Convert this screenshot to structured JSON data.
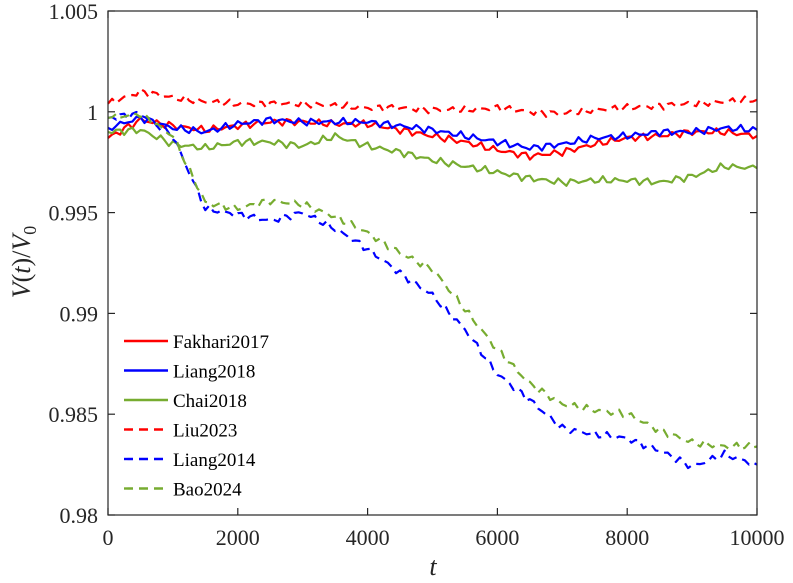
{
  "chart_data": {
    "type": "line",
    "xlabel": "t",
    "ylabel_parts": [
      "V",
      "(",
      "t",
      ")/",
      "V",
      "0"
    ],
    "xlim": [
      0,
      10000
    ],
    "ylim": [
      0.98,
      1.005
    ],
    "x_ticks": [
      "0",
      "2000",
      "4000",
      "6000",
      "8000",
      "10000"
    ],
    "y_ticks": [
      "0.98",
      "0.985",
      "0.99",
      "0.995",
      "1",
      "1.005"
    ],
    "grid": false,
    "legend_position": "bottom-left",
    "x": [
      0,
      500,
      1000,
      1500,
      2000,
      2500,
      3000,
      3500,
      4000,
      4500,
      5000,
      5500,
      6000,
      6500,
      7000,
      7500,
      8000,
      8500,
      9000,
      9500,
      10000
    ],
    "series": [
      {
        "name": "Fakhari2017",
        "color": "#ff0000",
        "dash": "solid",
        "values": [
          0.9987,
          0.9996,
          0.9993,
          0.9991,
          0.9993,
          0.9995,
          0.9995,
          0.9994,
          0.9994,
          0.9991,
          0.9988,
          0.9985,
          0.9981,
          0.9978,
          0.998,
          0.9984,
          0.9987,
          0.9988,
          0.999,
          0.999,
          0.9988
        ]
      },
      {
        "name": "Liang2018",
        "color": "#0000ff",
        "dash": "solid",
        "values": [
          0.9992,
          0.9997,
          0.9992,
          0.999,
          0.9994,
          0.9996,
          0.9995,
          0.9995,
          0.9995,
          0.9993,
          0.9991,
          0.9988,
          0.9985,
          0.9982,
          0.9984,
          0.9987,
          0.9988,
          0.999,
          0.999,
          0.9992,
          0.9991
        ]
      },
      {
        "name": "Chai2018",
        "color": "#77ac30",
        "dash": "solid",
        "values": [
          0.999,
          0.9991,
          0.9984,
          0.9982,
          0.9985,
          0.9985,
          0.9983,
          0.9988,
          0.9983,
          0.998,
          0.9976,
          0.9973,
          0.997,
          0.9967,
          0.9965,
          0.9966,
          0.9966,
          0.9965,
          0.9968,
          0.9973,
          0.9972
        ]
      },
      {
        "name": "Liu2023",
        "color": "#ff0000",
        "dash": "dashed",
        "values": [
          1.0004,
          1.001,
          1.0007,
          1.0005,
          1.0004,
          1.0004,
          1.0004,
          1.0003,
          1.0002,
          1.0002,
          1.0001,
          1.0001,
          1.0002,
          1.0,
          0.9999,
          1.0001,
          1.0002,
          1.0003,
          1.0004,
          1.0005,
          1.0006
        ]
      },
      {
        "name": "Liang2014",
        "color": "#0000ff",
        "dash": "dashed",
        "values": [
          0.9997,
          0.9999,
          0.9988,
          0.9952,
          0.9949,
          0.9946,
          0.995,
          0.9942,
          0.9932,
          0.992,
          0.9909,
          0.9892,
          0.987,
          0.9857,
          0.9843,
          0.984,
          0.9838,
          0.9832,
          0.9824,
          0.983,
          0.9825
        ]
      },
      {
        "name": "Bao2024",
        "color": "#77ac30",
        "dash": "dashed",
        "values": [
          0.9997,
          0.9999,
          0.9988,
          0.9955,
          0.9952,
          0.9956,
          0.9954,
          0.9948,
          0.994,
          0.993,
          0.9922,
          0.9902,
          0.9882,
          0.9865,
          0.9855,
          0.9852,
          0.985,
          0.9842,
          0.9836,
          0.9834,
          0.9834
        ]
      }
    ]
  }
}
